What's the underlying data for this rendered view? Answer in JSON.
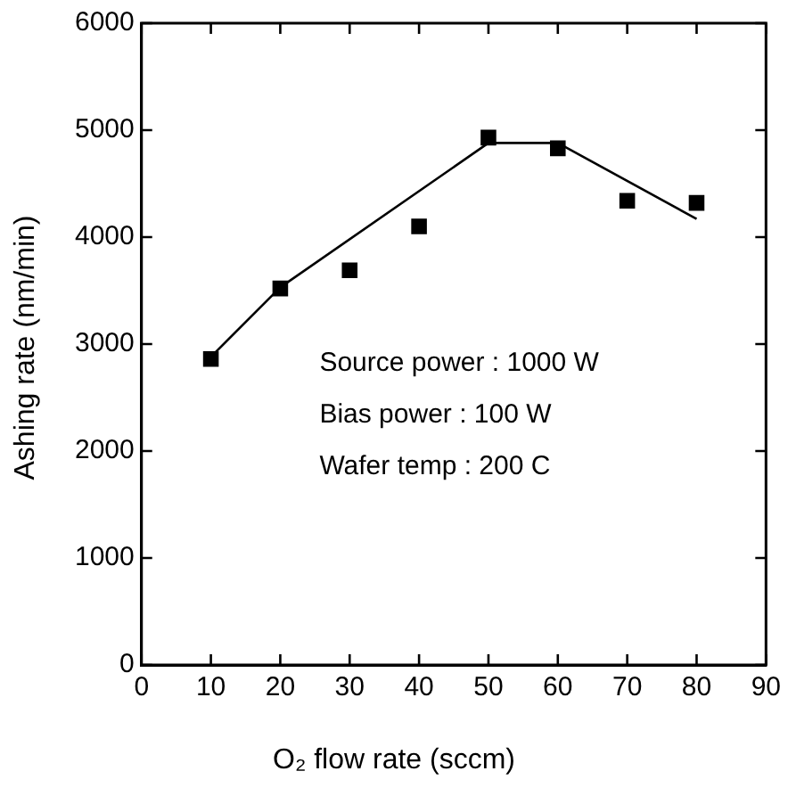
{
  "chart_data": {
    "type": "scatter",
    "xlabel": "O₂ flow rate (sccm)",
    "ylabel": "Ashing rate (nm/min)",
    "xlim": [
      0,
      90
    ],
    "xticks": [
      0,
      10,
      20,
      30,
      40,
      50,
      60,
      70,
      80,
      90
    ],
    "ylim": [
      0,
      6000
    ],
    "yticks": [
      0,
      1000,
      2000,
      3000,
      4000,
      5000,
      6000
    ],
    "grid": false,
    "legend": false,
    "marker": "square",
    "series": [
      {
        "color": "#000000",
        "x": [
          10,
          20,
          30,
          40,
          50,
          60,
          70,
          80
        ],
        "values": [
          2860,
          3520,
          3690,
          4100,
          4930,
          4830,
          4340,
          4320
        ]
      },
      {
        "type": "line",
        "color": "#000000",
        "marker": "none",
        "line_style": "solid",
        "x": [
          10,
          20,
          50,
          60,
          80
        ],
        "values": [
          2880,
          3530,
          4880,
          4880,
          4170
        ]
      }
    ],
    "annotations": [
      "Source power : 1000 W",
      "Bias power : 100 W",
      "Wafer temp : 200 C"
    ]
  }
}
